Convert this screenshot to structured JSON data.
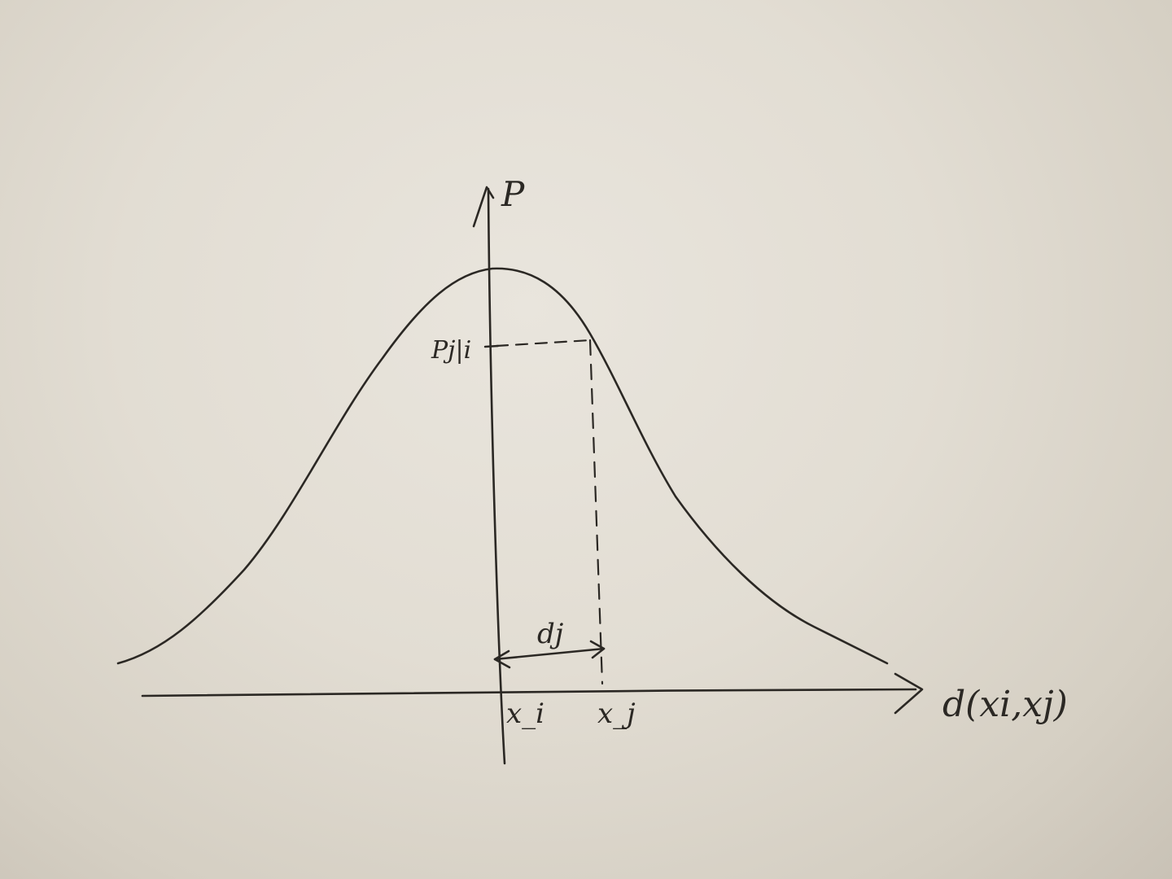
{
  "diagram": {
    "y_axis_label": "P",
    "x_axis_label": "d(xi,xj)",
    "origin_label": "x_i",
    "point_label": "x_j",
    "distance_label": "dj",
    "value_label": "Pj|i",
    "colors": {
      "paper": "#e4e0d8",
      "ink": "#2b2824"
    }
  }
}
